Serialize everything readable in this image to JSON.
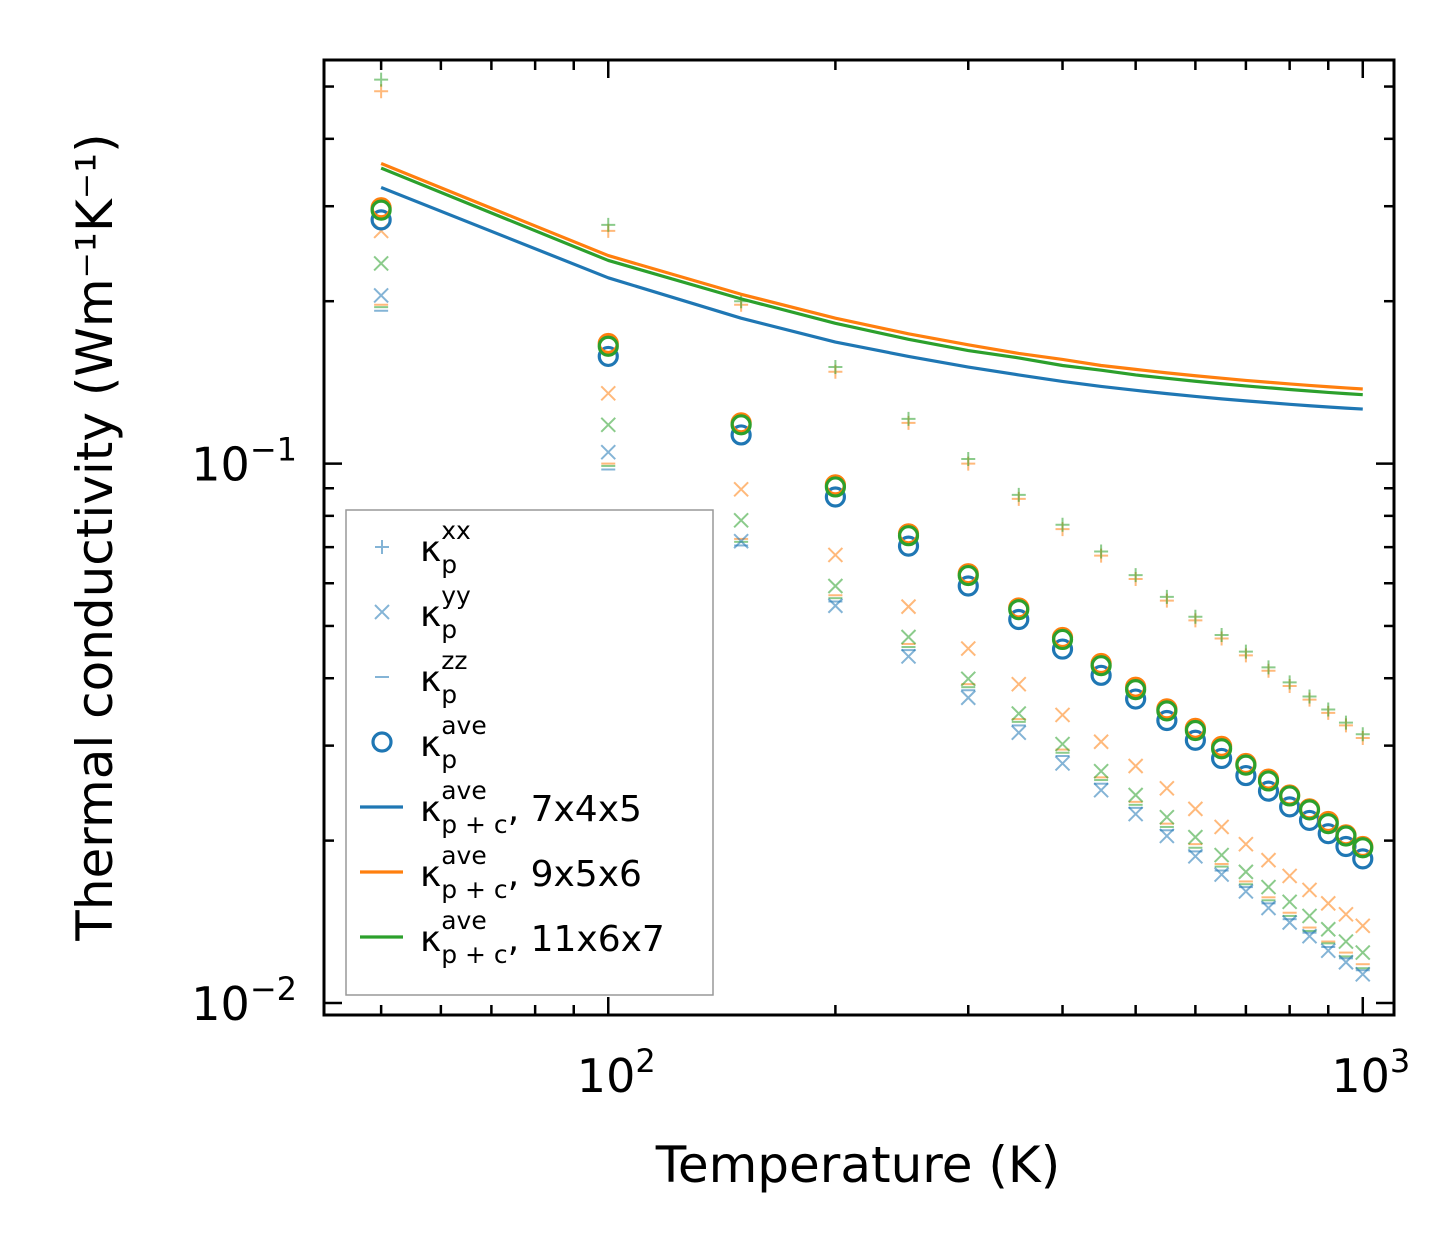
{
  "chart_data": {
    "type": "scatter",
    "xscale": "log",
    "yscale": "log",
    "xlabel": "Temperature (K)",
    "ylabel": "Thermal conductivity (Wm⁻¹K⁻¹)",
    "xlim": [
      42,
      1100
    ],
    "ylim": [
      0.0095,
      0.56
    ],
    "x_ticks": [
      {
        "base": "10",
        "exp": "2",
        "value": 100
      },
      {
        "base": "10",
        "exp": "3",
        "value": 1000
      }
    ],
    "y_ticks": [
      {
        "base": "10",
        "exp": "−1",
        "value": 0.1
      },
      {
        "base": "10",
        "exp": "−2",
        "value": 0.01
      }
    ],
    "x": [
      50,
      100,
      150,
      200,
      250,
      300,
      350,
      400,
      450,
      500,
      550,
      600,
      650,
      700,
      750,
      800,
      850,
      900,
      950,
      1000
    ],
    "colors": {
      "blue": "#1f77b4",
      "orange": "#ff7f0e",
      "green": "#2ca02c"
    },
    "legend": [
      {
        "marker": "plus",
        "base": "κ",
        "sup": "xx",
        "sub": "p",
        "suffix": ""
      },
      {
        "marker": "cross",
        "base": "κ",
        "sup": "yy",
        "sub": "p",
        "suffix": ""
      },
      {
        "marker": "dash",
        "base": "κ",
        "sup": "zz",
        "sub": "p",
        "suffix": ""
      },
      {
        "marker": "circle",
        "base": "κ",
        "sup": "ave",
        "sub": "p",
        "suffix": ""
      },
      {
        "marker": "line-blue",
        "base": "κ",
        "sup": "ave",
        "sub": "p + c",
        "suffix": ", 7x4x5"
      },
      {
        "marker": "line-orange",
        "base": "κ",
        "sup": "ave",
        "sub": "p + c",
        "suffix": ", 9x5x6"
      },
      {
        "marker": "line-green",
        "base": "κ",
        "sup": "ave",
        "sub": "p + c",
        "suffix": ", 11x6x7"
      }
    ],
    "series": [
      {
        "name": "κp,ave 7x4x5",
        "color": "blue",
        "marker": "circle",
        "values": [
          0.283,
          0.158,
          0.113,
          0.0867,
          0.0703,
          0.0593,
          0.0514,
          0.0453,
          0.0405,
          0.0366,
          0.0334,
          0.0307,
          0.0284,
          0.0264,
          0.0247,
          0.0231,
          0.0218,
          0.0206,
          0.0195,
          0.0185
        ]
      },
      {
        "name": "κp,ave 9x5x6",
        "color": "orange",
        "marker": "circle",
        "values": [
          0.298,
          0.167,
          0.119,
          0.0913,
          0.0741,
          0.0625,
          0.054,
          0.0476,
          0.0426,
          0.0385,
          0.0351,
          0.0323,
          0.0299,
          0.0278,
          0.026,
          0.0243,
          0.0229,
          0.0217,
          0.0205,
          0.0195
        ]
      },
      {
        "name": "κp,ave 11x6x7",
        "color": "green",
        "marker": "circle",
        "values": [
          0.295,
          0.165,
          0.118,
          0.0905,
          0.0735,
          0.062,
          0.0536,
          0.0472,
          0.0422,
          0.0381,
          0.0348,
          0.032,
          0.0296,
          0.0276,
          0.0258,
          0.0242,
          0.0228,
          0.0215,
          0.0204,
          0.0194
        ]
      },
      {
        "name": "κp,xx 9x5x6",
        "color": "orange",
        "marker": "plus",
        "values": [
          0.49,
          0.27,
          0.197,
          0.148,
          0.119,
          0.1,
          0.086,
          0.0756,
          0.0675,
          0.0611,
          0.0557,
          0.0512,
          0.0474,
          0.0441,
          0.0413,
          0.0387,
          0.0365,
          0.0345,
          0.0327,
          0.031
        ]
      },
      {
        "name": "κp,xx 11x6x7",
        "color": "green",
        "marker": "plus",
        "values": [
          0.515,
          0.277,
          0.2,
          0.151,
          0.121,
          0.102,
          0.0875,
          0.077,
          0.0687,
          0.0621,
          0.0566,
          0.052,
          0.0481,
          0.0448,
          0.0419,
          0.0393,
          0.037,
          0.035,
          0.0331,
          0.0315
        ]
      },
      {
        "name": "κp,yy 7x4x5",
        "color": "blue",
        "marker": "cross",
        "values": [
          0.205,
          0.105,
          0.0718,
          0.0545,
          0.0439,
          0.0368,
          0.0317,
          0.0278,
          0.0248,
          0.0224,
          0.0204,
          0.0187,
          0.0173,
          0.0161,
          0.015,
          0.0141,
          0.0133,
          0.0125,
          0.0119,
          0.0113
        ]
      },
      {
        "name": "κp,yy 9x5x6",
        "color": "orange",
        "marker": "cross",
        "values": [
          0.27,
          0.135,
          0.0896,
          0.0677,
          0.0543,
          0.0454,
          0.039,
          0.0342,
          0.0305,
          0.0275,
          0.025,
          0.0229,
          0.0212,
          0.0197,
          0.0184,
          0.0172,
          0.0162,
          0.0153,
          0.0146,
          0.0139
        ]
      },
      {
        "name": "κp,yy 11x6x7",
        "color": "green",
        "marker": "cross",
        "values": [
          0.235,
          0.118,
          0.0785,
          0.0593,
          0.0477,
          0.0399,
          0.0344,
          0.0302,
          0.0269,
          0.0243,
          0.0221,
          0.0203,
          0.0188,
          0.0175,
          0.0164,
          0.0154,
          0.0145,
          0.0137,
          0.013,
          0.0124
        ]
      },
      {
        "name": "κp,zz 7x4x5",
        "color": "blue",
        "marker": "dash",
        "values": [
          0.192,
          0.0975,
          0.0705,
          0.0555,
          0.0451,
          0.038,
          0.0327,
          0.0287,
          0.0255,
          0.023,
          0.0209,
          0.0191,
          0.0176,
          0.0164,
          0.0153,
          0.0143,
          0.0135,
          0.0127,
          0.0121,
          0.0115
        ]
      },
      {
        "name": "κp,zz 9x5x6",
        "color": "orange",
        "marker": "dash",
        "values": [
          0.197,
          0.1,
          0.0725,
          0.057,
          0.0463,
          0.039,
          0.0336,
          0.0295,
          0.0262,
          0.0236,
          0.0215,
          0.0197,
          0.0181,
          0.0168,
          0.0157,
          0.0147,
          0.0138,
          0.013,
          0.0124,
          0.0118
        ]
      },
      {
        "name": "κp,zz 11x6x7",
        "color": "green",
        "marker": "dash",
        "values": [
          0.195,
          0.099,
          0.0716,
          0.0563,
          0.0457,
          0.0385,
          0.0332,
          0.0291,
          0.0259,
          0.0233,
          0.0212,
          0.0194,
          0.0179,
          0.0166,
          0.0155,
          0.0145,
          0.0136,
          0.0129,
          0.0122,
          0.0116
        ]
      },
      {
        "name": "κp+c,ave 7x4x5",
        "color": "blue",
        "marker": "line",
        "values": [
          0.325,
          0.221,
          0.186,
          0.168,
          0.158,
          0.151,
          0.146,
          0.142,
          0.139,
          0.1367,
          0.1348,
          0.1332,
          0.1318,
          0.1307,
          0.1297,
          0.1288,
          0.128,
          0.1273,
          0.1267,
          0.1262
        ]
      },
      {
        "name": "κp+c,ave 9x5x6",
        "color": "orange",
        "marker": "line",
        "values": [
          0.36,
          0.243,
          0.206,
          0.186,
          0.174,
          0.166,
          0.16,
          0.156,
          0.152,
          0.1495,
          0.1473,
          0.1455,
          0.144,
          0.1426,
          0.1415,
          0.1405,
          0.1396,
          0.1388,
          0.1381,
          0.1375
        ]
      },
      {
        "name": "κp+c,ave 11x6x7",
        "color": "green",
        "marker": "line",
        "values": [
          0.353,
          0.238,
          0.202,
          0.182,
          0.17,
          0.162,
          0.157,
          0.152,
          0.149,
          0.146,
          0.1439,
          0.1421,
          0.1406,
          0.1393,
          0.1382,
          0.1372,
          0.1363,
          0.1355,
          0.1348,
          0.1342
        ]
      }
    ]
  }
}
